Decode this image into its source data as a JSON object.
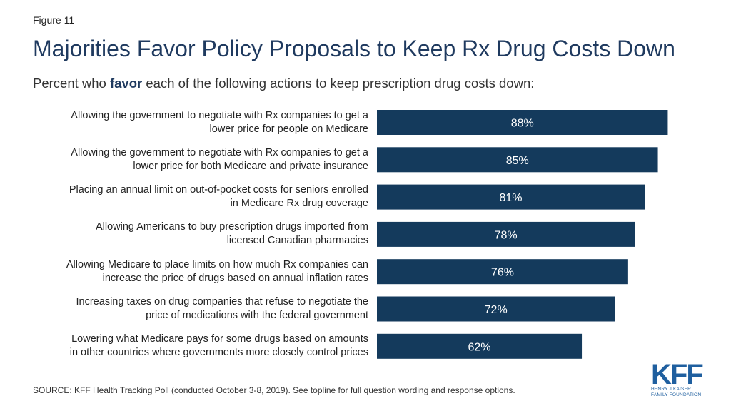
{
  "figure_label": "Figure 11",
  "title": "Majorities Favor Policy Proposals to Keep Rx Drug Costs Down",
  "subtitle": {
    "before": "Percent who ",
    "bold": "favor",
    "after": " each of the following actions to keep prescription drug costs down:"
  },
  "source": "SOURCE: KFF Health Tracking Poll (conducted October 3-8, 2019). See topline for full question wording and response options.",
  "logo": {
    "main": "KFF",
    "line1": "HENRY J KAISER",
    "line2": "FAMILY FOUNDATION"
  },
  "colors": {
    "bar": "#143a5c",
    "title": "#1f3a5f",
    "logo": "#1f5f9f"
  },
  "chart_data": {
    "type": "bar",
    "orientation": "horizontal",
    "categories": [
      "Allowing the government to negotiate with Rx companies to get a lower price for people on Medicare",
      "Allowing the government to negotiate with Rx companies to get a lower price for both Medicare and private insurance",
      "Placing an annual limit on out-of-pocket costs for seniors enrolled in Medicare Rx drug coverage",
      "Allowing Americans to buy prescription drugs imported from licensed Canadian pharmacies",
      "Allowing Medicare to place limits on how much Rx companies can increase the price of drugs based on annual inflation rates",
      "Increasing taxes on drug companies that refuse to negotiate the price of medications with the federal government",
      "Lowering what Medicare pays for some drugs based on amounts in other countries where governments more closely control prices"
    ],
    "category_lines": [
      [
        "Allowing the government to negotiate with Rx companies to get a",
        "lower price for people on Medicare"
      ],
      [
        "Allowing the government to negotiate with Rx companies to get a",
        "lower price for both Medicare and private insurance"
      ],
      [
        "Placing an annual limit on out-of-pocket costs for seniors enrolled",
        "in Medicare Rx drug coverage"
      ],
      [
        "Allowing Americans to buy prescription drugs imported from",
        "licensed Canadian pharmacies"
      ],
      [
        "Allowing Medicare to place limits on how much Rx companies can",
        "increase the price of drugs based on annual inflation rates"
      ],
      [
        "Increasing taxes on drug companies that refuse to negotiate the",
        "price of medications with the federal government"
      ],
      [
        "Lowering what Medicare pays for some drugs based on amounts",
        "in other countries where governments more closely control prices"
      ]
    ],
    "values": [
      88,
      85,
      81,
      78,
      76,
      72,
      62
    ],
    "value_labels": [
      "88%",
      "85%",
      "81%",
      "78%",
      "76%",
      "72%",
      "62%"
    ],
    "xlim": [
      0,
      100
    ],
    "grid": false,
    "legend": false
  }
}
